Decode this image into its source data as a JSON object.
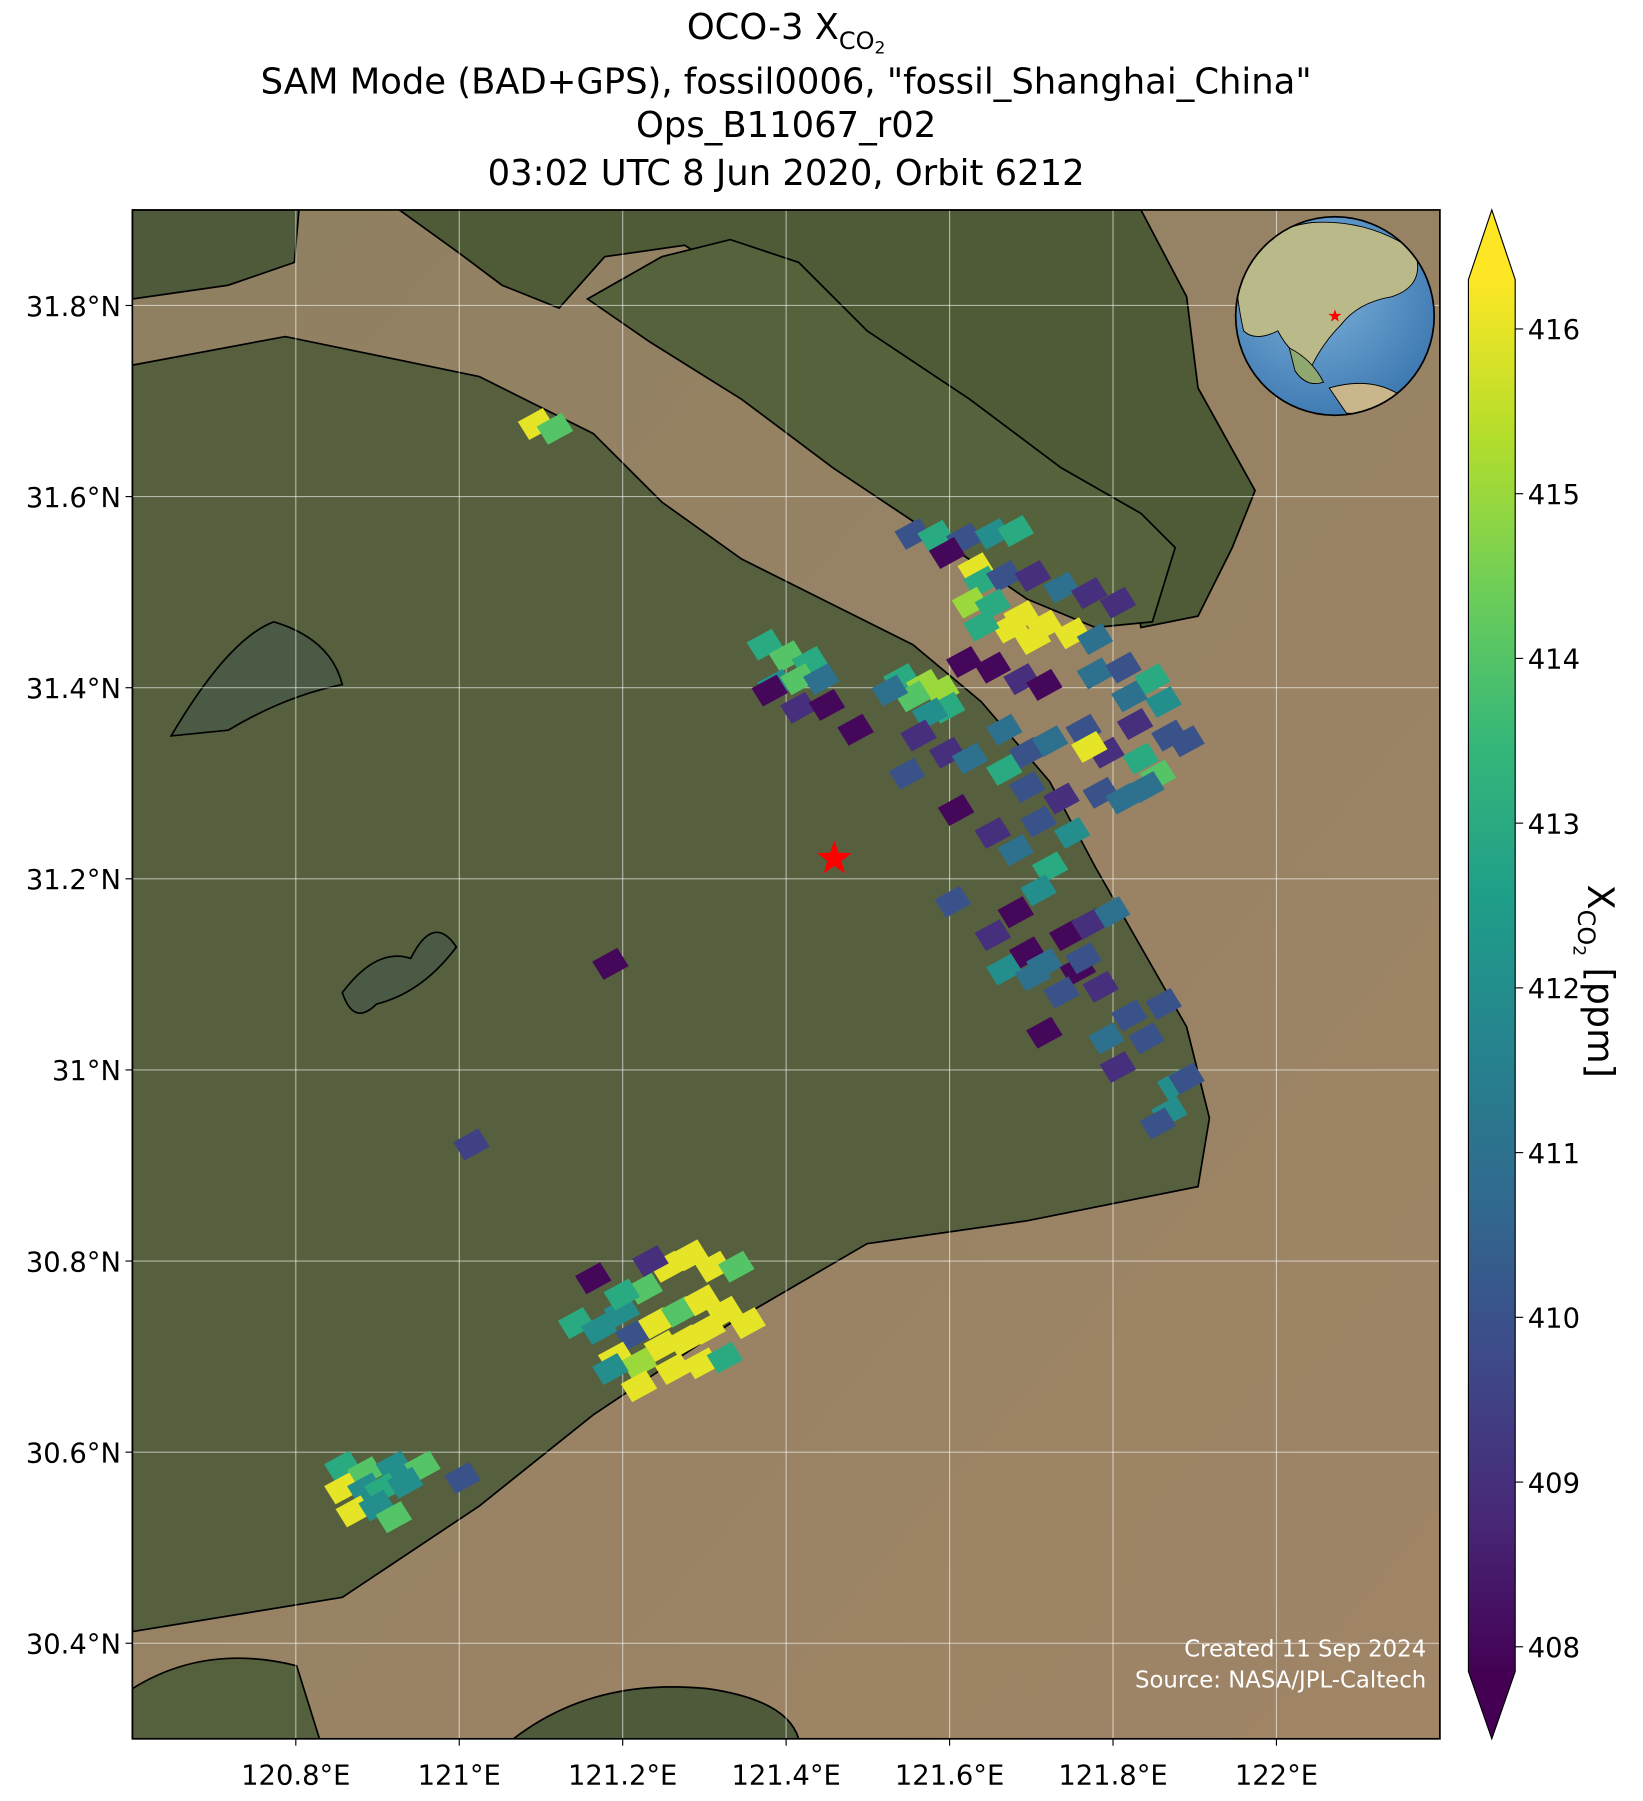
{
  "chart_data": {
    "type": "map",
    "title": "OCO-3 X",
    "title_subscript": "CO",
    "title_subscript_index": "2",
    "subtitle": [
      "SAM Mode (BAD+GPS), fossil0006, \"fossil_Shanghai_China\"",
      "Ops_B11067_r02",
      "03:02 UTC 8 Jun 2020, Orbit 6212"
    ],
    "xlim": [
      120.6,
      122.2
    ],
    "ylim": [
      30.3,
      31.9
    ],
    "xticks": [
      {
        "value": 120.8,
        "label": "120.8°E"
      },
      {
        "value": 121,
        "label": "121°E"
      },
      {
        "value": 121.2,
        "label": "121.2°E"
      },
      {
        "value": 121.4,
        "label": "121.4°E"
      },
      {
        "value": 121.6,
        "label": "121.6°E"
      },
      {
        "value": 121.8,
        "label": "121.8°E"
      },
      {
        "value": 122,
        "label": "122°E"
      }
    ],
    "yticks": [
      {
        "value": 30.4,
        "label": "30.4°N"
      },
      {
        "value": 30.6,
        "label": "30.6°N"
      },
      {
        "value": 30.8,
        "label": "30.8°N"
      },
      {
        "value": 31,
        "label": "31°N"
      },
      {
        "value": 31.2,
        "label": "31.2°N"
      },
      {
        "value": 31.4,
        "label": "31.4°N"
      },
      {
        "value": 31.6,
        "label": "31.6°N"
      },
      {
        "value": 31.8,
        "label": "31.8°N"
      }
    ],
    "grid": true,
    "colormap": "viridis",
    "clim": [
      407.85,
      416.3
    ],
    "cticks": [
      408,
      409,
      410,
      411,
      412,
      413,
      414,
      415,
      416
    ],
    "colorbar_extend": "both",
    "colorbar_label": "X",
    "colorbar_label_subscript": "CO",
    "colorbar_label_subscript_index": "2",
    "colorbar_label_unit": "[ppm]",
    "target": {
      "x": 121.459,
      "y": 31.221,
      "color": "#ff0000"
    },
    "credit": [
      "Created 11 Sep 2024",
      "Source: NASA/JPL-Caltech"
    ],
    "x": [
      121.094,
      121.117,
      121.555,
      121.583,
      121.618,
      121.653,
      121.681,
      121.597,
      121.632,
      121.639,
      121.667,
      121.702,
      121.737,
      121.771,
      121.806,
      121.625,
      121.653,
      121.688,
      121.716,
      121.75,
      121.778,
      121.674,
      121.702,
      121.639,
      121.618,
      121.653,
      121.688,
      121.716,
      121.374,
      121.401,
      121.429,
      121.387,
      121.415,
      121.443,
      121.38,
      121.415,
      121.45,
      121.541,
      121.569,
      121.59,
      121.555,
      121.527,
      121.597,
      121.576,
      121.485,
      121.562,
      121.597,
      121.625,
      121.548,
      121.608,
      121.778,
      121.813,
      121.848,
      121.862,
      121.82,
      121.764,
      121.792,
      121.827,
      121.869,
      121.89,
      121.834,
      121.855,
      121.841,
      121.771,
      121.785,
      121.813,
      121.667,
      121.695,
      121.723,
      121.695,
      121.667,
      121.737,
      121.709,
      121.75,
      121.723,
      121.681,
      121.653,
      121.709,
      121.604,
      121.681,
      121.653,
      121.695,
      121.667,
      121.716,
      121.744,
      121.771,
      121.799,
      121.757,
      121.785,
      121.764,
      121.737,
      121.702,
      121.716,
      121.792,
      121.82,
      121.841,
      121.862,
      121.806,
      121.876,
      121.869,
      121.855,
      121.89,
      121.185,
      121.015,
      121.164,
      121.143,
      121.171,
      121.199,
      121.227,
      121.255,
      121.283,
      121.311,
      121.339,
      121.213,
      121.241,
      121.269,
      121.297,
      121.325,
      121.353,
      121.192,
      121.22,
      121.248,
      121.276,
      121.304,
      121.22,
      121.262,
      121.297,
      121.325,
      121.234,
      121.199,
      121.185,
      120.857,
      120.885,
      120.92,
      120.955,
      120.857,
      120.885,
      120.906,
      120.934,
      120.871,
      120.899,
      120.92,
      121.004
    ],
    "y": [
      31.676,
      31.671,
      31.561,
      31.559,
      31.556,
      31.561,
      31.564,
      31.541,
      31.525,
      31.511,
      31.517,
      31.517,
      31.505,
      31.499,
      31.489,
      31.489,
      31.487,
      31.475,
      31.465,
      31.457,
      31.451,
      31.463,
      31.451,
      31.465,
      31.427,
      31.421,
      31.409,
      31.403,
      31.445,
      31.433,
      31.427,
      31.403,
      31.409,
      31.409,
      31.397,
      31.379,
      31.382,
      31.409,
      31.403,
      31.397,
      31.391,
      31.397,
      31.379,
      31.373,
      31.356,
      31.35,
      31.332,
      31.326,
      31.31,
      31.272,
      31.415,
      31.421,
      31.409,
      31.385,
      31.391,
      31.356,
      31.332,
      31.362,
      31.35,
      31.344,
      31.326,
      31.308,
      31.296,
      31.338,
      31.29,
      31.284,
      31.356,
      31.332,
      31.344,
      31.296,
      31.314,
      31.284,
      31.26,
      31.248,
      31.212,
      31.23,
      31.248,
      31.188,
      31.176,
      31.165,
      31.141,
      31.123,
      31.105,
      31.111,
      31.141,
      31.153,
      31.165,
      31.105,
      31.087,
      31.117,
      31.081,
      31.099,
      31.039,
      31.033,
      31.057,
      31.033,
      31.069,
      31.003,
      30.985,
      30.956,
      30.944,
      30.991,
      31.111,
      30.922,
      30.782,
      30.735,
      30.729,
      30.747,
      30.771,
      30.794,
      30.806,
      30.794,
      30.794,
      30.723,
      30.735,
      30.747,
      30.759,
      30.747,
      30.735,
      30.699,
      30.693,
      30.711,
      30.717,
      30.729,
      30.669,
      30.687,
      30.693,
      30.699,
      30.8,
      30.765,
      30.687,
      30.585,
      30.579,
      30.585,
      30.585,
      30.562,
      30.562,
      30.562,
      30.568,
      30.538,
      30.544,
      30.532,
      30.573
    ],
    "values": [
      416,
      414,
      410,
      413,
      410,
      412,
      413,
      408,
      416,
      413,
      410,
      409,
      411,
      409,
      409,
      415,
      413,
      416,
      416,
      416,
      411,
      416,
      416,
      413,
      408,
      408,
      409,
      408,
      413,
      414,
      413,
      412,
      414,
      411,
      408,
      409,
      408,
      413,
      415,
      415,
      414,
      411,
      413,
      412,
      408,
      409,
      409,
      411,
      410,
      408,
      411,
      410,
      413,
      412,
      411,
      410,
      409,
      409,
      410,
      410,
      413,
      414,
      411,
      416,
      410,
      411,
      411,
      410,
      411,
      410,
      413,
      409,
      410,
      412,
      413,
      411,
      409,
      412,
      410,
      408,
      409,
      408,
      412,
      411,
      408,
      409,
      411,
      408,
      409,
      410,
      410,
      411,
      408,
      411,
      410,
      410,
      410,
      409,
      412,
      412,
      410,
      410,
      408,
      409.5,
      408,
      413,
      412,
      412,
      414,
      416,
      416,
      416,
      414,
      410,
      416,
      414,
      416,
      416,
      416,
      416,
      415,
      416,
      416,
      416,
      416,
      416,
      416,
      413,
      409,
      413,
      412,
      413,
      414,
      412,
      414,
      416,
      412,
      413,
      412,
      416,
      412,
      414,
      410
    ]
  }
}
